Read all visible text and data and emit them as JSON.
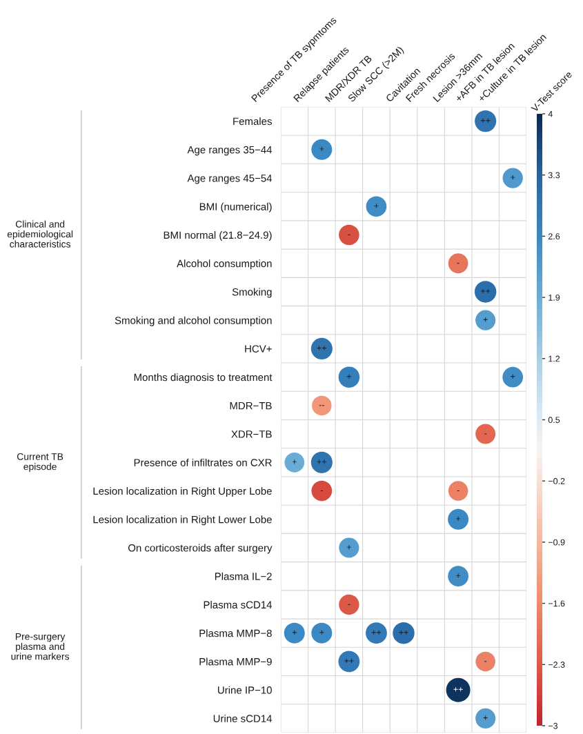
{
  "chart_data": {
    "type": "heatmap",
    "categories": [
      "Presence of TB sypmtoms",
      "Relapse patients",
      "MDR/XDR TB",
      "Slow SCC (>2M)",
      "Cavitation",
      "Fresh necrosis",
      "Lesion >36mm",
      "+AFB in TB lesion",
      "+Culture in TB lesion"
    ],
    "y_categories": [
      "Females",
      "Age ranges 35−44",
      "Age ranges 45−54",
      "BMI (numerical)",
      "BMI normal (21.8−24.9)",
      "Alcohol consumption",
      "Smoking",
      "Smoking and alcohol consumption",
      "HCV+",
      "Months diagnosis to treatment",
      "MDR−TB",
      "XDR−TB",
      "Presence of infiltrates on CXR",
      "Lesion localization in Right Upper Lobe",
      "Lesion localization in Right Lower Lobe",
      "On corticosteroids after surgery",
      "Plasma IL−2",
      "Plasma sCD14",
      "Plasma MMP−8",
      "Plasma MMP−9",
      "Urine IP−10",
      "Urine sCD14"
    ],
    "cells": [
      [
        null,
        null,
        null,
        null,
        null,
        null,
        null,
        3.0,
        null
      ],
      [
        null,
        2.6,
        null,
        null,
        null,
        null,
        null,
        null,
        null
      ],
      [
        null,
        null,
        null,
        null,
        null,
        null,
        null,
        null,
        2.3
      ],
      [
        null,
        null,
        null,
        2.5,
        null,
        null,
        null,
        null,
        null
      ],
      [
        null,
        null,
        -2.4,
        null,
        null,
        null,
        null,
        null,
        null
      ],
      [
        null,
        null,
        null,
        null,
        null,
        null,
        -1.9,
        null,
        null
      ],
      [
        null,
        null,
        null,
        null,
        null,
        null,
        null,
        3.1,
        null
      ],
      [
        null,
        null,
        null,
        null,
        null,
        null,
        null,
        2.2,
        null
      ],
      [
        null,
        3.0,
        null,
        null,
        null,
        null,
        null,
        null,
        null
      ],
      [
        null,
        null,
        2.8,
        null,
        null,
        null,
        null,
        null,
        2.5
      ],
      [
        null,
        -1.4,
        null,
        null,
        null,
        null,
        null,
        null,
        null
      ],
      [
        null,
        null,
        null,
        null,
        null,
        null,
        null,
        -2.1,
        null
      ],
      [
        1.9,
        3.0,
        null,
        null,
        null,
        null,
        null,
        null,
        null
      ],
      [
        null,
        -2.5,
        null,
        null,
        null,
        null,
        -1.7,
        null,
        null
      ],
      [
        null,
        null,
        null,
        null,
        null,
        null,
        2.6,
        null,
        null
      ],
      [
        null,
        null,
        2.2,
        null,
        null,
        null,
        null,
        null,
        null
      ],
      [
        null,
        null,
        null,
        null,
        null,
        null,
        2.5,
        null,
        null
      ],
      [
        null,
        null,
        -2.3,
        null,
        null,
        null,
        null,
        null,
        null
      ],
      [
        2.6,
        2.6,
        null,
        2.9,
        3.1,
        null,
        null,
        null,
        null
      ],
      [
        null,
        null,
        2.9,
        null,
        null,
        null,
        null,
        -1.7,
        null
      ],
      [
        null,
        null,
        null,
        null,
        null,
        null,
        3.9,
        null,
        null
      ],
      [
        null,
        null,
        null,
        null,
        null,
        null,
        null,
        2.2,
        null
      ]
    ],
    "cell_labels": [
      [
        null,
        null,
        null,
        null,
        null,
        null,
        null,
        "++",
        null
      ],
      [
        null,
        "+",
        null,
        null,
        null,
        null,
        null,
        null,
        null
      ],
      [
        null,
        null,
        null,
        null,
        null,
        null,
        null,
        null,
        "+"
      ],
      [
        null,
        null,
        null,
        "+",
        null,
        null,
        null,
        null,
        null
      ],
      [
        null,
        null,
        "-",
        null,
        null,
        null,
        null,
        null,
        null
      ],
      [
        null,
        null,
        null,
        null,
        null,
        null,
        "-",
        null,
        null
      ],
      [
        null,
        null,
        null,
        null,
        null,
        null,
        null,
        "++",
        null
      ],
      [
        null,
        null,
        null,
        null,
        null,
        null,
        null,
        "+",
        null
      ],
      [
        null,
        "++",
        null,
        null,
        null,
        null,
        null,
        null,
        null
      ],
      [
        null,
        null,
        "+",
        null,
        null,
        null,
        null,
        null,
        "+"
      ],
      [
        null,
        "--",
        null,
        null,
        null,
        null,
        null,
        null,
        null
      ],
      [
        null,
        null,
        null,
        null,
        null,
        null,
        null,
        "-",
        null
      ],
      [
        "+",
        "++",
        null,
        null,
        null,
        null,
        null,
        null,
        null
      ],
      [
        null,
        "-",
        null,
        null,
        null,
        null,
        "-",
        null,
        null
      ],
      [
        null,
        null,
        null,
        null,
        null,
        null,
        "+",
        null,
        null
      ],
      [
        null,
        null,
        "+",
        null,
        null,
        null,
        null,
        null,
        null
      ],
      [
        null,
        null,
        null,
        null,
        null,
        null,
        "+",
        null,
        null
      ],
      [
        null,
        null,
        "-",
        null,
        null,
        null,
        null,
        null,
        null
      ],
      [
        "+",
        "+",
        null,
        "++",
        "++",
        null,
        null,
        null,
        null
      ],
      [
        null,
        null,
        "++",
        null,
        null,
        null,
        null,
        "-",
        null
      ],
      [
        null,
        null,
        null,
        null,
        null,
        null,
        "++",
        null,
        null
      ],
      [
        null,
        null,
        null,
        null,
        null,
        null,
        null,
        "+",
        null
      ]
    ],
    "clim": [
      -3,
      4
    ],
    "cticks": [
      4,
      3.3,
      2.6,
      1.9,
      1.2,
      0.5,
      -0.2,
      -0.9,
      -1.6,
      -2.3,
      -3
    ],
    "clabel": "V-Test score",
    "grid": true,
    "annotations": [
      "Clinical and\nepidemiological\ncharacteristics",
      "Current TB\nepisode",
      "Pre-surgery\nplasma and\nurine markers"
    ]
  }
}
